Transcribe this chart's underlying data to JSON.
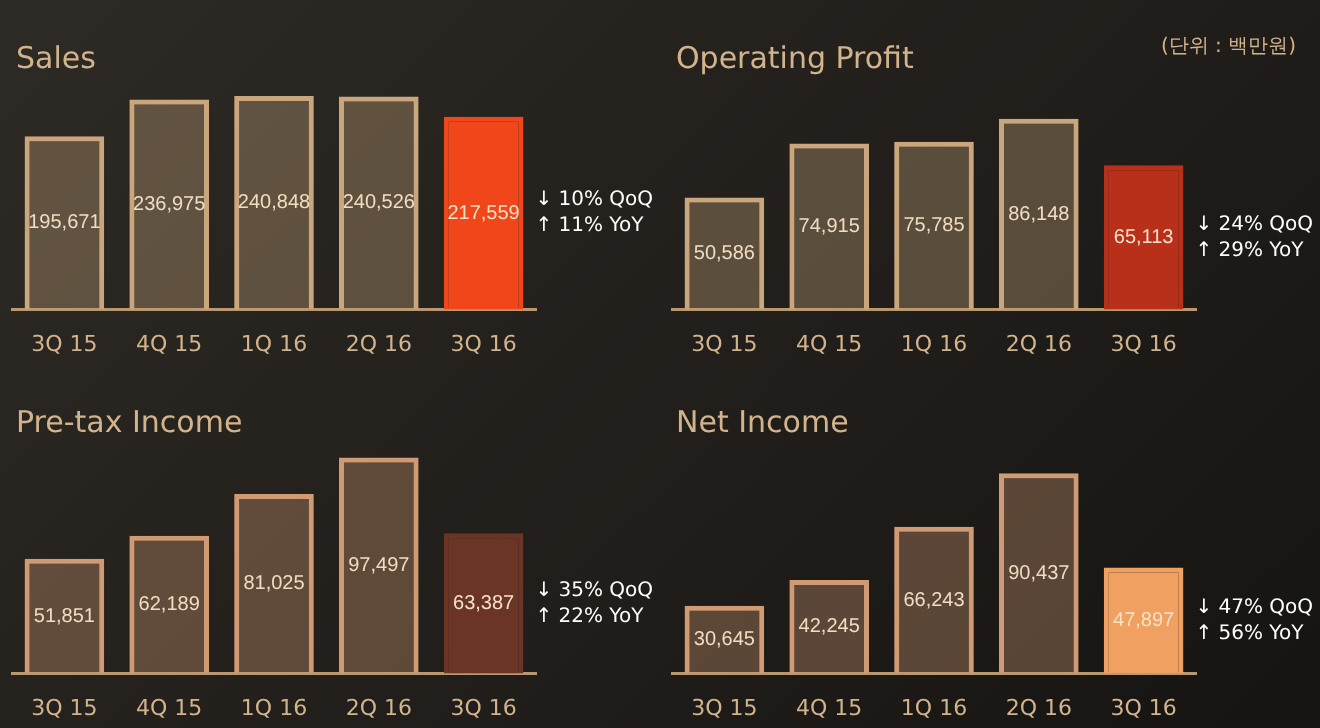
{
  "chart_data": [
    {
      "type": "bar",
      "title": "Sales",
      "categories": [
        "3Q 15",
        "4Q 15",
        "1Q 16",
        "2Q 16",
        "3Q 16"
      ],
      "values": [
        195671,
        236975,
        240848,
        240526,
        217559
      ],
      "value_labels": [
        "195,671",
        "236,975",
        "240,848",
        "240,526",
        "217,559"
      ],
      "colors": [
        "#c9a67c",
        "#c9a67c",
        "#c9a67c",
        "#c9a67c",
        "#f0461a"
      ],
      "annotations": [
        "↓ 10% QoQ",
        "↑ 11% YoY"
      ]
    },
    {
      "type": "bar",
      "title": "Operating Profit",
      "subtitle": "(단위 : 백만원)",
      "categories": [
        "3Q 15",
        "4Q 15",
        "1Q 16",
        "2Q 16",
        "3Q 16"
      ],
      "values": [
        50586,
        74915,
        75785,
        86148,
        65113
      ],
      "value_labels": [
        "50,586",
        "74,915",
        "75,785",
        "86,148",
        "65,113"
      ],
      "colors": [
        "#c9a67c",
        "#c9a67c",
        "#c9a67c",
        "#c9a67c",
        "#b8301a"
      ],
      "annotations": [
        "↓ 24% QoQ",
        "↑ 29% YoY"
      ]
    },
    {
      "type": "bar",
      "title": "Pre-tax Income",
      "categories": [
        "3Q 15",
        "4Q 15",
        "1Q 16",
        "2Q 16",
        "3Q 16"
      ],
      "values": [
        51851,
        62189,
        81025,
        97497,
        63387
      ],
      "value_labels": [
        "51,851",
        "62,189",
        "81,025",
        "97,497",
        "63,387"
      ],
      "colors": [
        "#d09a72",
        "#d09a72",
        "#d09a72",
        "#d09a72",
        "#6b3525"
      ],
      "annotations": [
        "↓ 35% QoQ",
        "↑ 22% YoY"
      ]
    },
    {
      "type": "bar",
      "title": "Net Income",
      "categories": [
        "3Q 15",
        "4Q 15",
        "1Q 16",
        "2Q 16",
        "3Q 16"
      ],
      "values": [
        30645,
        42245,
        66243,
        90437,
        47897
      ],
      "value_labels": [
        "30,645",
        "42,245",
        "66,243",
        "90,437",
        "47,897"
      ],
      "colors": [
        "#d09a72",
        "#d09a72",
        "#d09a72",
        "#d09a72",
        "#f0a060"
      ],
      "annotations": [
        "↓ 47% QoQ",
        "↑ 56% YoY"
      ]
    }
  ]
}
